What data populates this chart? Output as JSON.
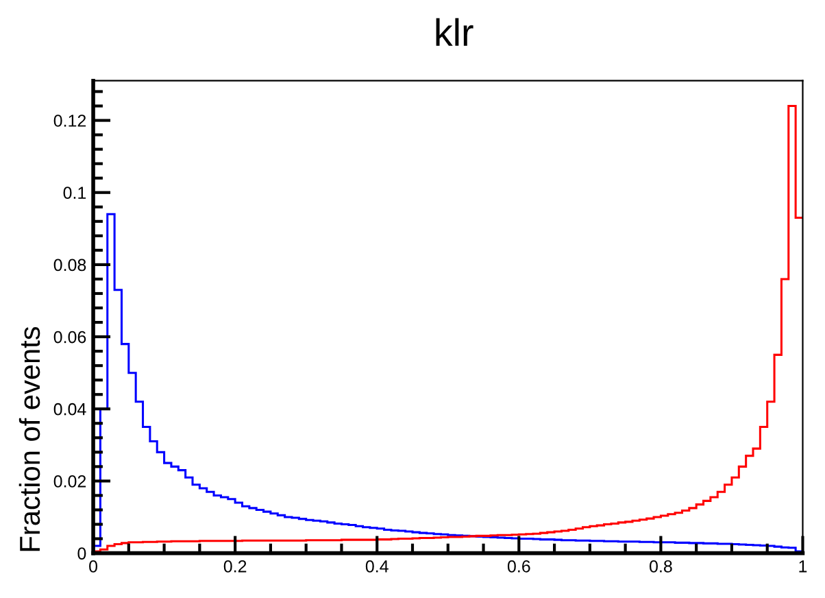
{
  "chart_data": {
    "type": "histogram",
    "title": "klr",
    "ylabel": "Fraction of events",
    "bins": [
      0,
      0.01,
      0.02,
      0.03,
      0.04,
      0.05,
      0.06,
      0.07,
      0.08,
      0.09,
      0.1,
      0.11,
      0.12,
      0.13,
      0.14,
      0.15,
      0.16,
      0.17,
      0.18,
      0.19,
      0.2,
      0.21,
      0.22,
      0.23,
      0.24,
      0.25,
      0.26,
      0.27,
      0.28,
      0.29,
      0.3,
      0.31,
      0.32,
      0.33,
      0.34,
      0.35,
      0.36,
      0.37,
      0.38,
      0.39,
      0.4,
      0.41,
      0.42,
      0.43,
      0.44,
      0.45,
      0.46,
      0.47,
      0.48,
      0.49,
      0.5,
      0.51,
      0.52,
      0.53,
      0.54,
      0.55,
      0.56,
      0.57,
      0.58,
      0.59,
      0.6,
      0.61,
      0.62,
      0.63,
      0.64,
      0.65,
      0.66,
      0.67,
      0.68,
      0.69,
      0.7,
      0.71,
      0.72,
      0.73,
      0.74,
      0.75,
      0.76,
      0.77,
      0.78,
      0.79,
      0.8,
      0.81,
      0.82,
      0.83,
      0.84,
      0.85,
      0.86,
      0.87,
      0.88,
      0.89,
      0.9,
      0.91,
      0.92,
      0.93,
      0.94,
      0.95,
      0.96,
      0.97,
      0.98,
      0.99,
      1
    ],
    "series": [
      {
        "color": "#0000ff",
        "values": [
          0.002,
          0.04,
          0.094,
          0.073,
          0.058,
          0.05,
          0.042,
          0.035,
          0.031,
          0.028,
          0.025,
          0.024,
          0.023,
          0.021,
          0.019,
          0.018,
          0.017,
          0.016,
          0.0155,
          0.015,
          0.014,
          0.013,
          0.0125,
          0.012,
          0.0115,
          0.011,
          0.0105,
          0.01,
          0.0098,
          0.0095,
          0.0092,
          0.009,
          0.0088,
          0.0085,
          0.0082,
          0.008,
          0.0078,
          0.0075,
          0.0072,
          0.007,
          0.0068,
          0.0065,
          0.0063,
          0.0062,
          0.006,
          0.0058,
          0.0056,
          0.0055,
          0.0053,
          0.0052,
          0.005,
          0.0049,
          0.0048,
          0.0047,
          0.0046,
          0.0045,
          0.0044,
          0.0043,
          0.0042,
          0.0041,
          0.004,
          0.004,
          0.0039,
          0.0038,
          0.0038,
          0.0037,
          0.0036,
          0.0036,
          0.0035,
          0.0035,
          0.0034,
          0.0034,
          0.0033,
          0.0033,
          0.0032,
          0.0032,
          0.0032,
          0.0031,
          0.0031,
          0.003,
          0.003,
          0.003,
          0.0029,
          0.0029,
          0.0028,
          0.0028,
          0.0027,
          0.0027,
          0.0026,
          0.0026,
          0.0025,
          0.0024,
          0.0023,
          0.0022,
          0.0021,
          0.002,
          0.0018,
          0.0016,
          0.0015,
          0.0005
        ]
      },
      {
        "color": "#ff0000",
        "values": [
          0.0005,
          0.001,
          0.002,
          0.0025,
          0.0028,
          0.003,
          0.003,
          0.0031,
          0.0031,
          0.0032,
          0.0032,
          0.0033,
          0.0033,
          0.0033,
          0.0033,
          0.0034,
          0.0034,
          0.0034,
          0.0034,
          0.0034,
          0.0034,
          0.0035,
          0.0035,
          0.0035,
          0.0035,
          0.0035,
          0.0035,
          0.0035,
          0.0035,
          0.0035,
          0.0036,
          0.0036,
          0.0036,
          0.0036,
          0.0036,
          0.0037,
          0.0037,
          0.0037,
          0.0037,
          0.0037,
          0.0038,
          0.0038,
          0.0039,
          0.004,
          0.004,
          0.0041,
          0.0042,
          0.0042,
          0.0043,
          0.0044,
          0.0045,
          0.0045,
          0.0046,
          0.0047,
          0.0048,
          0.0048,
          0.0049,
          0.005,
          0.005,
          0.0051,
          0.0052,
          0.0053,
          0.0054,
          0.0056,
          0.0058,
          0.006,
          0.0062,
          0.0065,
          0.0068,
          0.0072,
          0.0075,
          0.0077,
          0.008,
          0.0082,
          0.0085,
          0.0087,
          0.009,
          0.0093,
          0.0096,
          0.01,
          0.0104,
          0.0108,
          0.0112,
          0.0118,
          0.0125,
          0.0135,
          0.0145,
          0.0155,
          0.017,
          0.019,
          0.021,
          0.024,
          0.027,
          0.029,
          0.035,
          0.042,
          0.055,
          0.076,
          0.124,
          0.093
        ]
      }
    ],
    "xlim": [
      0,
      1
    ],
    "xticks": [
      0,
      0.2,
      0.4,
      0.6,
      0.8,
      1
    ],
    "ylim": [
      0,
      0.131
    ],
    "yticks": [
      0,
      0.02,
      0.04,
      0.06,
      0.08,
      0.1,
      0.12
    ],
    "grid": false,
    "legend": false
  }
}
